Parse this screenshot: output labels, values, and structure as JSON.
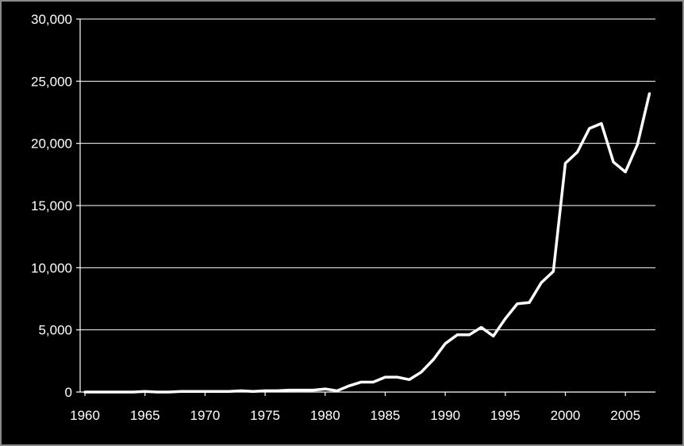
{
  "chart_data": {
    "type": "line",
    "title": "",
    "xlabel": "",
    "ylabel": "",
    "xlim": [
      1960,
      2007
    ],
    "ylim": [
      0,
      30000
    ],
    "grid": true,
    "legend": "none",
    "x_ticks": [
      1960,
      1965,
      1970,
      1975,
      1980,
      1985,
      1990,
      1995,
      2000,
      2005
    ],
    "x_tick_labels": [
      "1960",
      "1965",
      "1970",
      "1975",
      "1980",
      "1985",
      "1990",
      "1995",
      "2000",
      "2005"
    ],
    "y_ticks": [
      0,
      5000,
      10000,
      15000,
      20000,
      25000,
      30000
    ],
    "y_tick_labels": [
      "0",
      "5,000",
      "10,000",
      "15,000",
      "20,000",
      "25,000",
      "30,000"
    ],
    "colors": {
      "background": "#000000",
      "line": "#ffffff",
      "grid": "#ffffff",
      "text": "#ffffff"
    },
    "series": [
      {
        "x": [
          1960,
          1961,
          1962,
          1963,
          1964,
          1965,
          1966,
          1967,
          1968,
          1969,
          1970,
          1971,
          1972,
          1973,
          1974,
          1975,
          1976,
          1977,
          1978,
          1979,
          1980,
          1981,
          1982,
          1983,
          1984,
          1985,
          1986,
          1987,
          1988,
          1989,
          1990,
          1991,
          1992,
          1993,
          1994,
          1995,
          1996,
          1997,
          1998,
          1999,
          2000,
          2001,
          2002,
          2003,
          2004,
          2005,
          2006,
          2007
        ],
        "values": [
          0,
          0,
          0,
          0,
          0,
          50,
          0,
          0,
          50,
          50,
          50,
          50,
          50,
          100,
          50,
          100,
          100,
          150,
          150,
          150,
          250,
          100,
          500,
          800,
          800,
          1200,
          1200,
          1000,
          1600,
          2600,
          3900,
          4600,
          4600,
          5200,
          4500,
          5900,
          7100,
          7200,
          8800,
          9700,
          18400,
          19300,
          21200,
          21600,
          18500,
          17700,
          19900,
          24000
        ]
      }
    ]
  }
}
